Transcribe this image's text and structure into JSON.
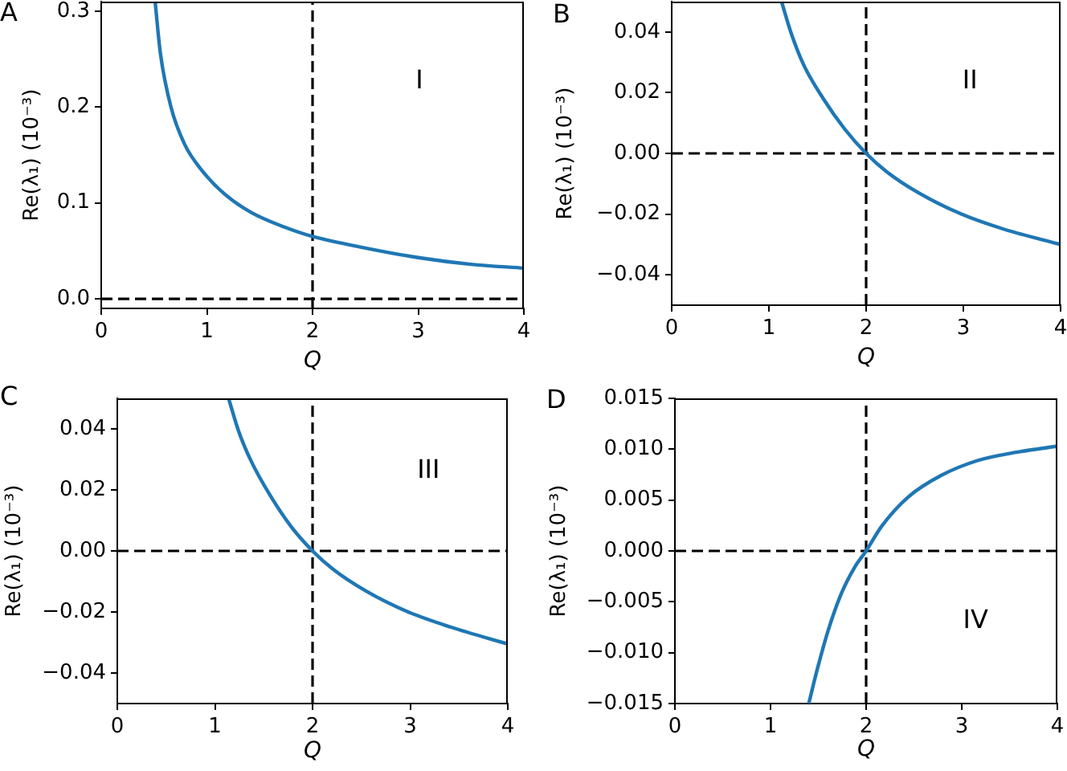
{
  "chart_data": [
    {
      "type": "line",
      "title": "A",
      "xlabel": "Q",
      "ylabel": "Re(λ₁) (10⁻³)",
      "color": "#1f77b4",
      "x": [
        0.51,
        0.56,
        0.66,
        0.79,
        0.96,
        1.17,
        1.42,
        1.73,
        2.0,
        2.5,
        3.0,
        3.5,
        4.0
      ],
      "values": [
        0.31,
        0.256,
        0.2,
        0.161,
        0.133,
        0.109,
        0.09,
        0.075,
        0.065,
        0.053,
        0.043,
        0.036,
        0.032
      ],
      "xlim": [
        0,
        4
      ],
      "ylim": [
        -0.01,
        0.31
      ],
      "xticks": [
        0,
        1,
        2,
        3,
        4
      ],
      "yticks": [
        {
          "value": 0,
          "label": "0.0"
        },
        0.1,
        0.2,
        0.3
      ],
      "ref_lines": [
        {
          "axis": "x",
          "value": 2,
          "color": "#000000",
          "line_style": "dashed"
        },
        {
          "axis": "y",
          "value": 0,
          "color": "#000000",
          "line_style": "dashed"
        }
      ],
      "annotations": [
        "I"
      ]
    },
    {
      "type": "line",
      "title": "B",
      "xlabel": "Q",
      "ylabel": "Re(λ₁) (10⁻³)",
      "color": "#1f77b4",
      "x": [
        1.13,
        1.23,
        1.36,
        1.56,
        1.78,
        2.0,
        2.21,
        2.54,
        2.98,
        3.42,
        4.0
      ],
      "values": [
        0.05,
        0.0395,
        0.029,
        0.018,
        0.008,
        0,
        -0.006,
        -0.013,
        -0.02,
        -0.025,
        -0.03
      ],
      "xlim": [
        0,
        4
      ],
      "ylim": [
        -0.05,
        0.05
      ],
      "xticks": [
        0,
        1,
        2,
        3,
        4
      ],
      "yticks": [
        {
          "value": -0.04,
          "label": "−0.04"
        },
        {
          "value": -0.02,
          "label": "−0.02"
        },
        {
          "value": 0,
          "label": "0.00"
        },
        0.02,
        0.04
      ],
      "ref_lines": [
        {
          "axis": "x",
          "value": 2,
          "color": "#000000",
          "line_style": "dashed"
        },
        {
          "axis": "y",
          "value": 0,
          "color": "#000000",
          "line_style": "dashed"
        }
      ],
      "annotations": [
        "II"
      ]
    },
    {
      "type": "line",
      "title": "C",
      "xlabel": "Q",
      "ylabel": "Re(λ₁) (10⁻³)",
      "color": "#1f77b4",
      "x": [
        1.14,
        1.24,
        1.37,
        1.56,
        1.78,
        2.0,
        2.21,
        2.54,
        2.98,
        3.42,
        4.0
      ],
      "values": [
        0.05,
        0.0395,
        0.0295,
        0.0185,
        0.008,
        0,
        -0.006,
        -0.013,
        -0.02,
        -0.025,
        -0.0305
      ],
      "xlim": [
        0,
        4
      ],
      "ylim": [
        -0.05,
        0.05
      ],
      "xticks": [
        0,
        1,
        2,
        3,
        4
      ],
      "yticks": [
        {
          "value": -0.04,
          "label": "−0.04"
        },
        {
          "value": -0.02,
          "label": "−0.02"
        },
        {
          "value": 0,
          "label": "0.00"
        },
        0.02,
        0.04
      ],
      "ref_lines": [
        {
          "axis": "x",
          "value": 2,
          "color": "#000000",
          "line_style": "dashed"
        },
        {
          "axis": "y",
          "value": 0,
          "color": "#000000",
          "line_style": "dashed"
        }
      ],
      "annotations": [
        "III"
      ]
    },
    {
      "type": "line",
      "title": "D",
      "xlabel": "Q",
      "ylabel": "Re(λ₁) (10⁻³)",
      "color": "#1f77b4",
      "x": [
        1.4,
        1.49,
        1.6,
        1.74,
        1.88,
        2.0,
        2.16,
        2.44,
        2.78,
        3.17,
        3.57,
        4.0
      ],
      "values": [
        -0.015,
        -0.0116,
        -0.0079,
        -0.0042,
        -0.0016,
        0,
        0.0024,
        0.0053,
        0.0074,
        0.0089,
        0.0097,
        0.0103
      ],
      "xlim": [
        0,
        4
      ],
      "ylim": [
        -0.015,
        0.015
      ],
      "xticks": [
        0,
        1,
        2,
        3,
        4
      ],
      "yticks": [
        {
          "value": -0.015,
          "label": "−0.015"
        },
        {
          "value": -0.01,
          "label": "−0.010"
        },
        {
          "value": -0.005,
          "label": "−0.005"
        },
        {
          "value": 0,
          "label": "0.000"
        },
        0.005,
        {
          "value": 0.01,
          "label": "0.010"
        },
        0.015
      ],
      "ref_lines": [
        {
          "axis": "x",
          "value": 2,
          "color": "#000000",
          "line_style": "dashed"
        },
        {
          "axis": "y",
          "value": 0,
          "color": "#000000",
          "line_style": "dashed"
        }
      ],
      "annotations": [
        "IV"
      ]
    }
  ]
}
